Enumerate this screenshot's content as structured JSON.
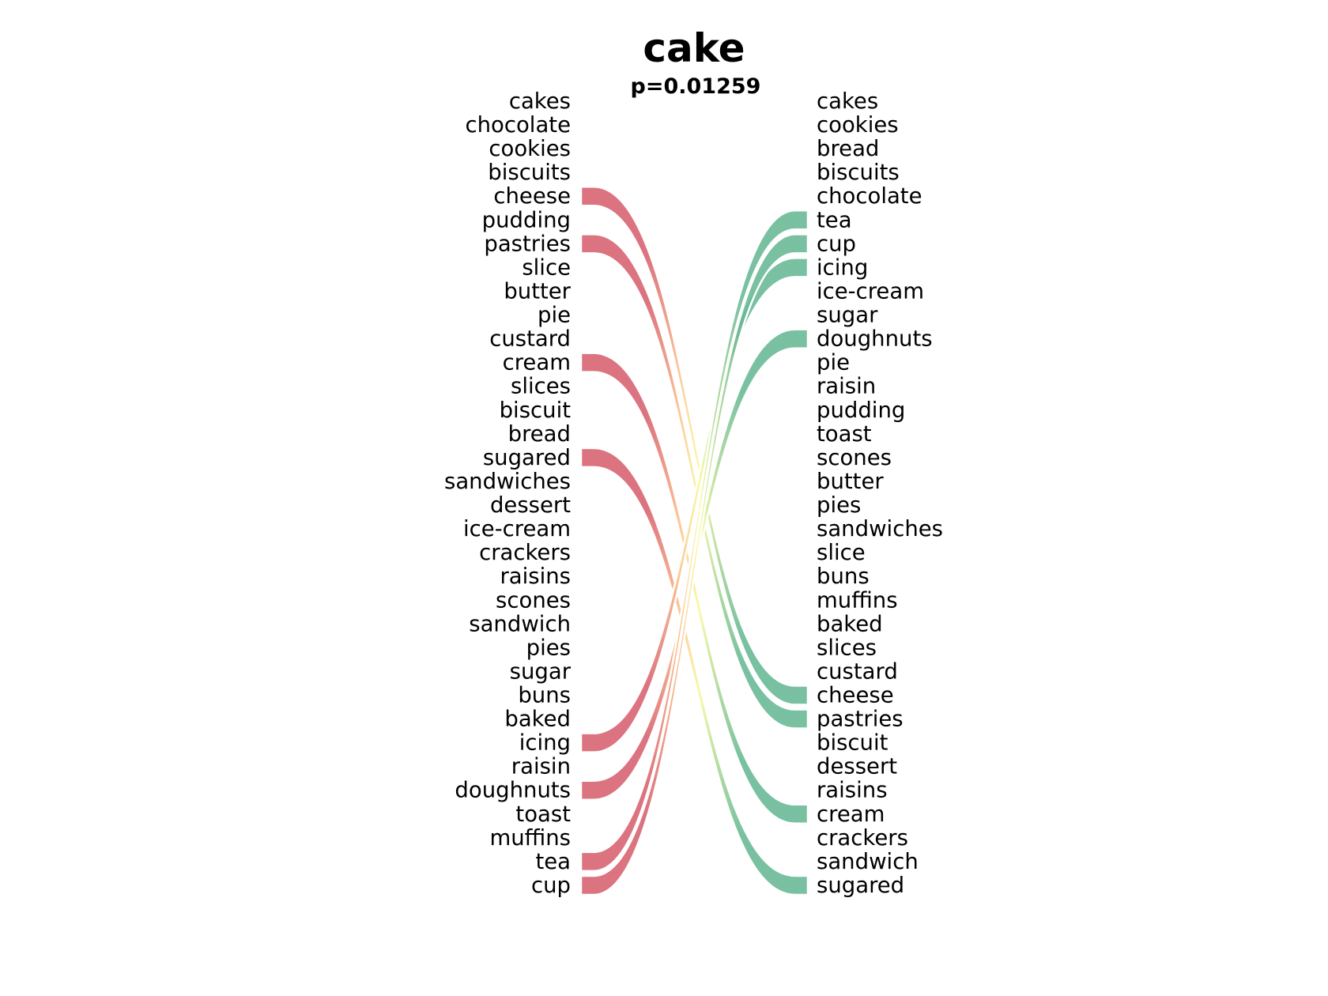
{
  "chart_data": {
    "type": "bump",
    "title": "cake",
    "subtitle": "p=0.01259",
    "left": [
      "cakes",
      "chocolate",
      "cookies",
      "biscuits",
      "cheese",
      "pudding",
      "pastries",
      "slice",
      "butter",
      "pie",
      "custard",
      "cream",
      "slices",
      "biscuit",
      "bread",
      "sugared",
      "sandwiches",
      "dessert",
      "ice-cream",
      "crackers",
      "raisins",
      "scones",
      "sandwich",
      "pies",
      "sugar",
      "buns",
      "baked",
      "icing",
      "raisin",
      "doughnuts",
      "toast",
      "muffins",
      "tea",
      "cup"
    ],
    "right": [
      "cakes",
      "cookies",
      "bread",
      "biscuits",
      "chocolate",
      "tea",
      "cup",
      "icing",
      "ice-cream",
      "sugar",
      "doughnuts",
      "pie",
      "raisin",
      "pudding",
      "toast",
      "scones",
      "butter",
      "pies",
      "sandwiches",
      "slice",
      "buns",
      "muffins",
      "baked",
      "slices",
      "custard",
      "cheese",
      "pastries",
      "biscuit",
      "dessert",
      "raisins",
      "cream",
      "crackers",
      "sandwich",
      "sugared"
    ],
    "links": [
      {
        "word": "cheese",
        "from": 4,
        "to": 25
      },
      {
        "word": "pastries",
        "from": 6,
        "to": 26
      },
      {
        "word": "cream",
        "from": 11,
        "to": 30
      },
      {
        "word": "sugared",
        "from": 15,
        "to": 33
      },
      {
        "word": "icing",
        "from": 27,
        "to": 7
      },
      {
        "word": "doughnuts",
        "from": 29,
        "to": 10
      },
      {
        "word": "tea",
        "from": 32,
        "to": 5
      },
      {
        "word": "cup",
        "from": 33,
        "to": 6
      }
    ],
    "colors": {
      "start": "#d7606e",
      "mid": "#f7fa9a",
      "end": "#66b894",
      "mid_warm": "#fdbf8a"
    }
  }
}
